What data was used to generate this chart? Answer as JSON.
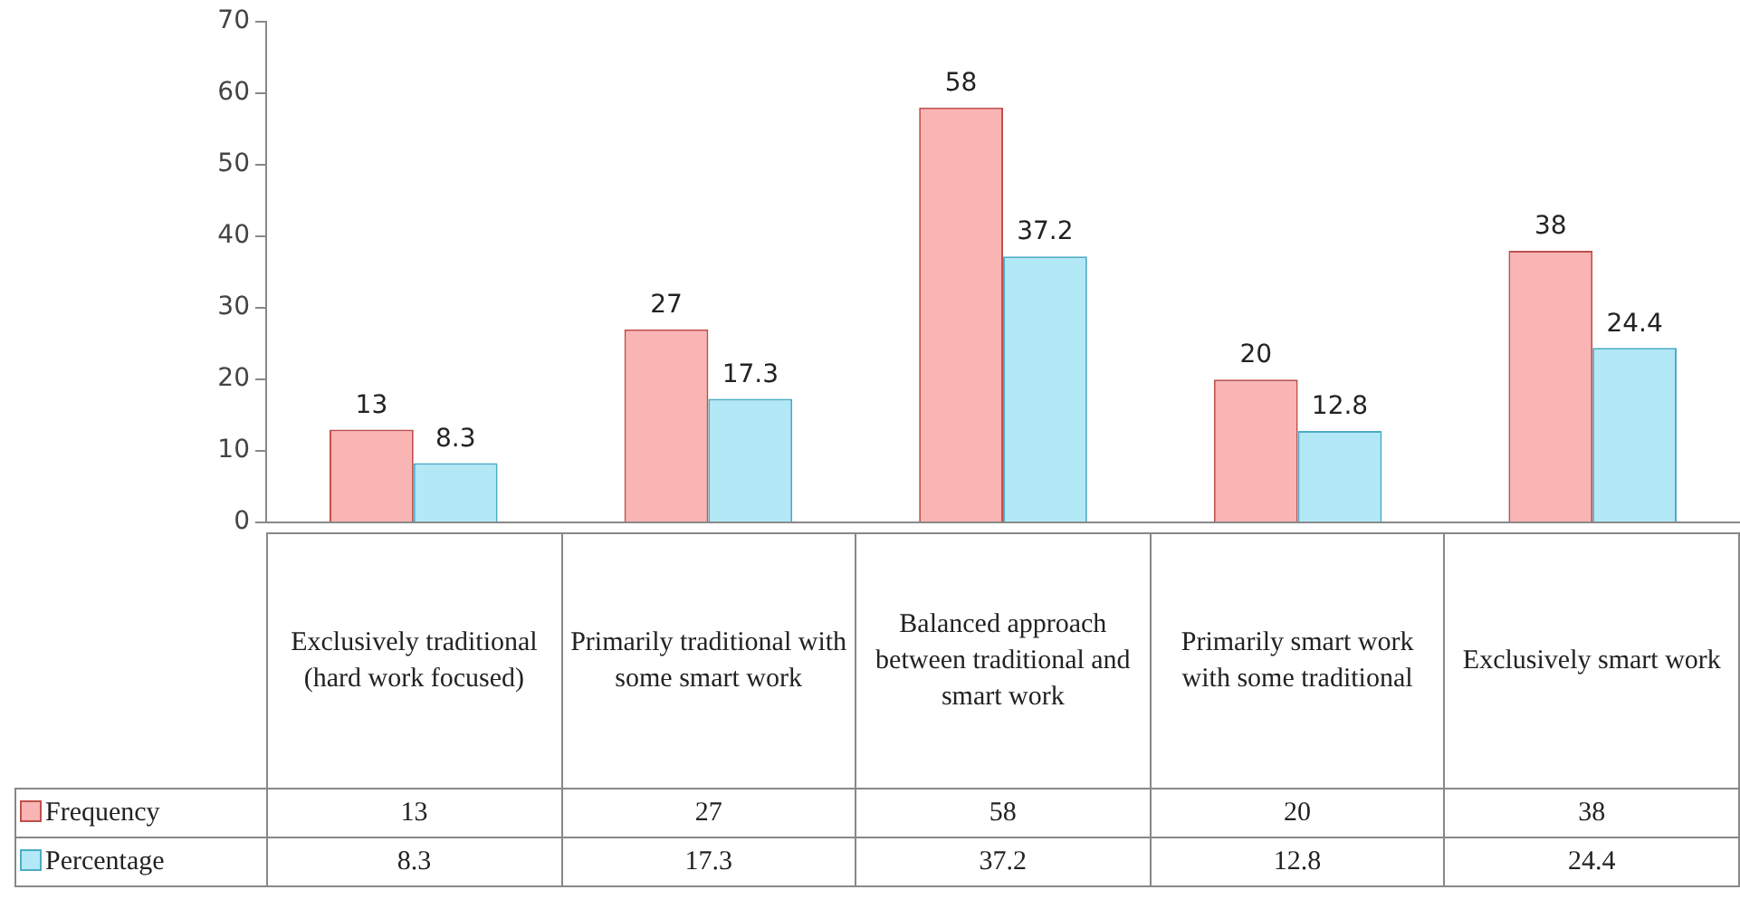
{
  "chart_data": {
    "type": "bar",
    "categories": [
      "Exclusively traditional (hard work focused)",
      "Primarily traditional with some smart work",
      "Balanced approach between traditional and smart work",
      "Primarily smart work with some traditional",
      "Exclusively smart work"
    ],
    "series": [
      {
        "name": "Frequency",
        "color": "#f9b4b4",
        "values": [
          13,
          27,
          58,
          20,
          38
        ],
        "value_labels": [
          "13",
          "27",
          "58",
          "20",
          "38"
        ]
      },
      {
        "name": "Percentage",
        "color": "#b3e8f7",
        "values": [
          8.3,
          17.3,
          37.2,
          12.8,
          24.4
        ],
        "value_labels": [
          "8.3",
          "17.3",
          "37.2",
          "12.8",
          "24.4"
        ]
      }
    ],
    "ylim": [
      0,
      70
    ],
    "yticks": [
      0,
      10,
      20,
      30,
      40,
      50,
      60,
      70
    ],
    "annotations": [
      "13",
      "27",
      "58",
      "20",
      "38",
      "8.3",
      "17.3",
      "37.2",
      "12.8",
      "24.4"
    ],
    "legend": "bottom",
    "grid": false
  }
}
